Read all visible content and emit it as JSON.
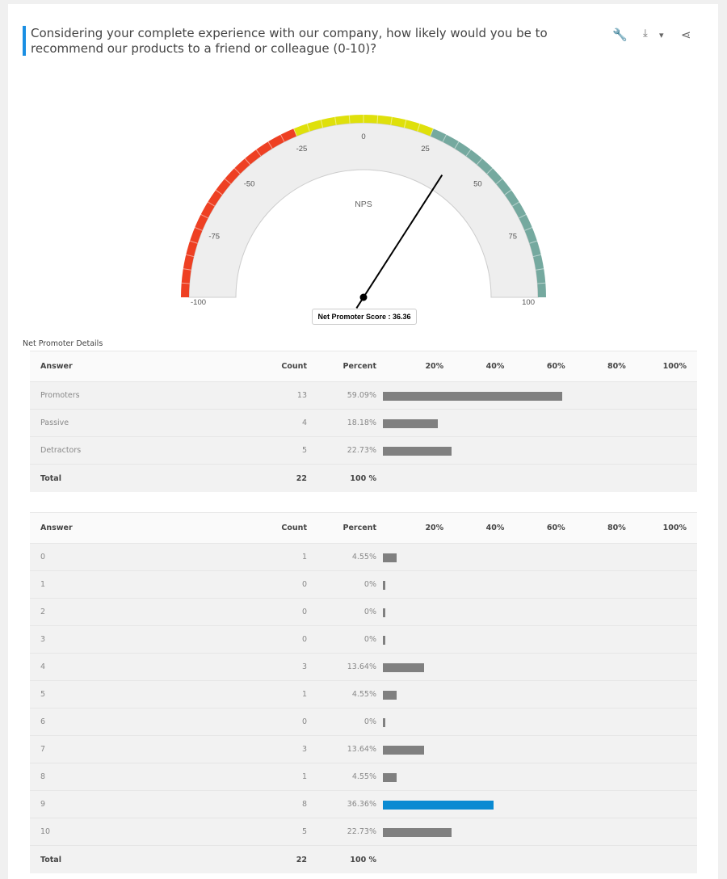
{
  "question": "Considering your complete experience with our company, how likely would you be to recommend our products to a friend or colleague (0-10)?",
  "toolbar": {
    "icons": [
      "wrench-icon",
      "download-icon",
      "share-icon"
    ],
    "dropdown": "▾"
  },
  "gauge": {
    "label": "NPS",
    "min": -100,
    "max": 100,
    "value": 36.36,
    "tick_labels": [
      "-100",
      "-75",
      "-50",
      "-25",
      "0",
      "25",
      "50",
      "75",
      "100"
    ],
    "bands": [
      {
        "from": -100,
        "to": -25,
        "color": "#ee4023"
      },
      {
        "from": -25,
        "to": 25,
        "color": "#dfe00b"
      },
      {
        "from": 25,
        "to": 100,
        "color": "#75a99f"
      }
    ],
    "tooltip": "Net Promoter Score : 36.36"
  },
  "details_title": "Net Promoter Details",
  "headers": {
    "answer": "Answer",
    "count": "Count",
    "percent": "Percent",
    "scale": [
      "20%",
      "40%",
      "60%",
      "80%",
      "100%"
    ]
  },
  "summary": {
    "rows": [
      {
        "answer": "Promoters",
        "count": "13",
        "percent": "59.09%",
        "value": 59.09
      },
      {
        "answer": "Passive",
        "count": "4",
        "percent": "18.18%",
        "value": 18.18
      },
      {
        "answer": "Detractors",
        "count": "5",
        "percent": "22.73%",
        "value": 22.73
      }
    ],
    "total": {
      "label": "Total",
      "count": "22",
      "percent": "100 %"
    }
  },
  "distribution": {
    "rows": [
      {
        "answer": "0",
        "count": "1",
        "percent": "4.55%",
        "value": 4.55
      },
      {
        "answer": "1",
        "count": "0",
        "percent": "0%",
        "value": 0
      },
      {
        "answer": "2",
        "count": "0",
        "percent": "0%",
        "value": 0
      },
      {
        "answer": "3",
        "count": "0",
        "percent": "0%",
        "value": 0
      },
      {
        "answer": "4",
        "count": "3",
        "percent": "13.64%",
        "value": 13.64
      },
      {
        "answer": "5",
        "count": "1",
        "percent": "4.55%",
        "value": 4.55
      },
      {
        "answer": "6",
        "count": "0",
        "percent": "0%",
        "value": 0
      },
      {
        "answer": "7",
        "count": "3",
        "percent": "13.64%",
        "value": 13.64
      },
      {
        "answer": "8",
        "count": "1",
        "percent": "4.55%",
        "value": 4.55
      },
      {
        "answer": "9",
        "count": "8",
        "percent": "36.36%",
        "value": 36.36,
        "highlight": true
      },
      {
        "answer": "10",
        "count": "5",
        "percent": "22.73%",
        "value": 22.73
      }
    ],
    "total": {
      "label": "Total",
      "count": "22",
      "percent": "100 %"
    }
  },
  "colors": {
    "accent": "#1a8fe3",
    "bar": "#808080",
    "highlight_bar": "#0a8ad2"
  }
}
